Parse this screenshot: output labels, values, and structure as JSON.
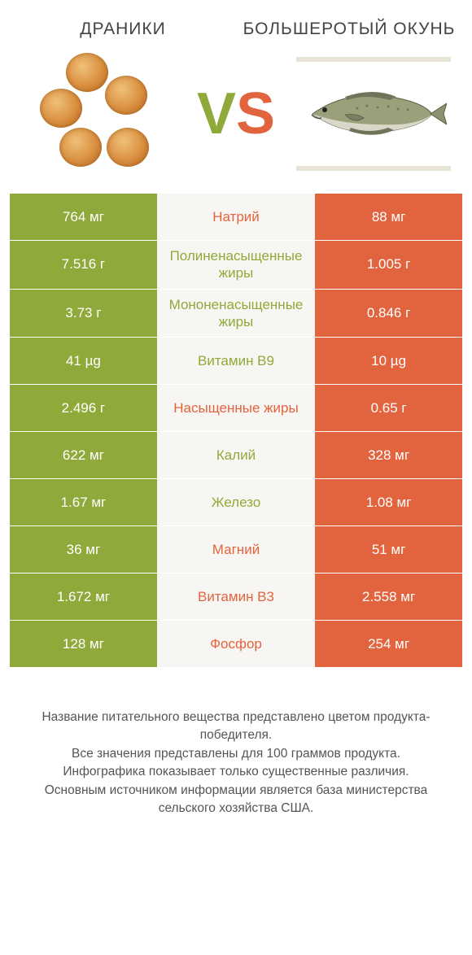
{
  "colors": {
    "green": "#8fa93a",
    "orange": "#e2643e",
    "mid_bg": "#f8f6f2",
    "mid_text_green": "#8fa93a",
    "mid_text_orange": "#e2643e"
  },
  "header": {
    "left_title": "ДРАНИКИ",
    "right_title": "БОЛЬШЕРОТЫЙ ОКУНЬ",
    "vs_v": "V",
    "vs_s": "S"
  },
  "rows": [
    {
      "label": "Натрий",
      "left": "764 мг",
      "right": "88 мг",
      "winner": "left"
    },
    {
      "label": "Полиненасыщенные жиры",
      "left": "7.516 г",
      "right": "1.005 г",
      "winner": "left"
    },
    {
      "label": "Мононенасыщенные жиры",
      "left": "3.73 г",
      "right": "0.846 г",
      "winner": "left"
    },
    {
      "label": "Витамин B9",
      "left": "41 µg",
      "right": "10 µg",
      "winner": "left"
    },
    {
      "label": "Насыщенные жиры",
      "left": "2.496 г",
      "right": "0.65 г",
      "winner": "left"
    },
    {
      "label": "Калий",
      "left": "622 мг",
      "right": "328 мг",
      "winner": "left"
    },
    {
      "label": "Железо",
      "left": "1.67 мг",
      "right": "1.08 мг",
      "winner": "left"
    },
    {
      "label": "Магний",
      "left": "36 мг",
      "right": "51 мг",
      "winner": "right"
    },
    {
      "label": "Витамин B3",
      "left": "1.672 мг",
      "right": "2.558 мг",
      "winner": "right"
    },
    {
      "label": "Фосфор",
      "left": "128 мг",
      "right": "254 мг",
      "winner": "right"
    }
  ],
  "footer": {
    "line1": "Название питательного вещества представлено цветом продукта-победителя.",
    "line2": "Все значения представлены для 100 граммов продукта.",
    "line3": "Инфографика показывает только существенные различия.",
    "line4": "Основным источником информации является база министерства сельского хозяйства США."
  }
}
